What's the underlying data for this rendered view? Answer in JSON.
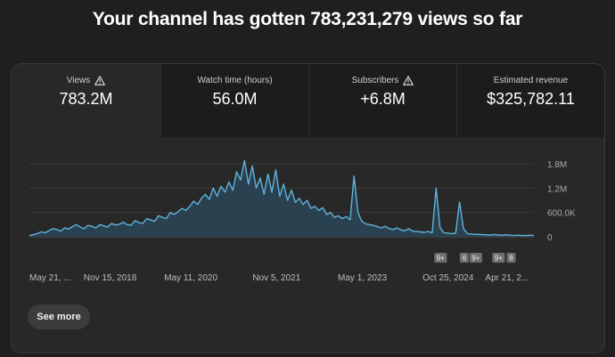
{
  "headline": "Your channel has gotten 783,231,279 views so far",
  "metrics": [
    {
      "label": "Views",
      "value": "783.2M",
      "warning": true,
      "active": true
    },
    {
      "label": "Watch time (hours)",
      "value": "56.0M",
      "warning": false,
      "active": false
    },
    {
      "label": "Subscribers",
      "value": "+6.8M",
      "warning": true,
      "active": false
    },
    {
      "label": "Estimated revenue",
      "value": "$325,782.11",
      "warning": false,
      "active": false
    }
  ],
  "see_more_label": "See more",
  "icons": {
    "warning": "warning-icon"
  },
  "colors": {
    "line": "#5fb3dc",
    "fill": "#2a4150",
    "marker": "#6f6f6f"
  },
  "chart_data": {
    "type": "area",
    "series": [
      {
        "values": [
          0.03,
          0.05,
          0.08,
          0.12,
          0.1,
          0.15,
          0.2,
          0.18,
          0.14,
          0.22,
          0.19,
          0.25,
          0.3,
          0.24,
          0.2,
          0.28,
          0.26,
          0.22,
          0.3,
          0.27,
          0.24,
          0.33,
          0.29,
          0.31,
          0.36,
          0.3,
          0.28,
          0.4,
          0.35,
          0.33,
          0.45,
          0.42,
          0.38,
          0.52,
          0.48,
          0.45,
          0.6,
          0.55,
          0.62,
          0.7,
          0.65,
          0.75,
          0.88,
          0.8,
          0.95,
          1.05,
          0.92,
          1.2,
          1.0,
          1.25,
          1.1,
          1.35,
          1.15,
          1.6,
          1.4,
          1.88,
          1.3,
          1.75,
          1.2,
          1.45,
          1.05,
          1.55,
          1.1,
          1.65,
          1.0,
          1.3,
          0.9,
          1.15,
          0.85,
          0.95,
          0.8,
          0.9,
          0.7,
          0.75,
          0.65,
          0.72,
          0.55,
          0.6,
          0.48,
          0.52,
          0.45,
          0.5,
          0.42,
          1.5,
          0.6,
          0.38,
          0.32,
          0.3,
          0.28,
          0.25,
          0.22,
          0.26,
          0.2,
          0.18,
          0.22,
          0.17,
          0.15,
          0.2,
          0.14,
          0.13,
          0.12,
          0.11,
          0.13,
          0.1,
          1.2,
          0.22,
          0.1,
          0.09,
          0.08,
          0.09,
          0.86,
          0.2,
          0.08,
          0.07,
          0.06,
          0.06,
          0.05,
          0.05,
          0.04,
          0.06,
          0.04,
          0.04,
          0.05,
          0.04,
          0.03,
          0.04,
          0.03,
          0.03,
          0.04,
          0.03
        ]
      }
    ],
    "y_ticks": [
      "1.8M",
      "1.2M",
      "600.0K",
      "0"
    ],
    "y_tick_values": [
      1.8,
      1.2,
      0.6,
      0
    ],
    "ylim": [
      0,
      1.8
    ],
    "x_ticks": [
      "May 21, ...",
      "Nov 15, 2018",
      "May 11, 2020",
      "Nov 5, 2021",
      "May 1, 2023",
      "Oct 25, 2024",
      "Apr 21, 2..."
    ],
    "x_tick_fractions": [
      0.0,
      0.16,
      0.32,
      0.49,
      0.66,
      0.83,
      0.99
    ],
    "markers": [
      {
        "label": "9+",
        "at": 0.815
      },
      {
        "label": "6",
        "at": 0.862
      },
      {
        "label": "9+",
        "at": 0.885
      },
      {
        "label": "9+",
        "at": 0.93
      },
      {
        "label": "8",
        "at": 0.955
      }
    ],
    "grid": true
  }
}
